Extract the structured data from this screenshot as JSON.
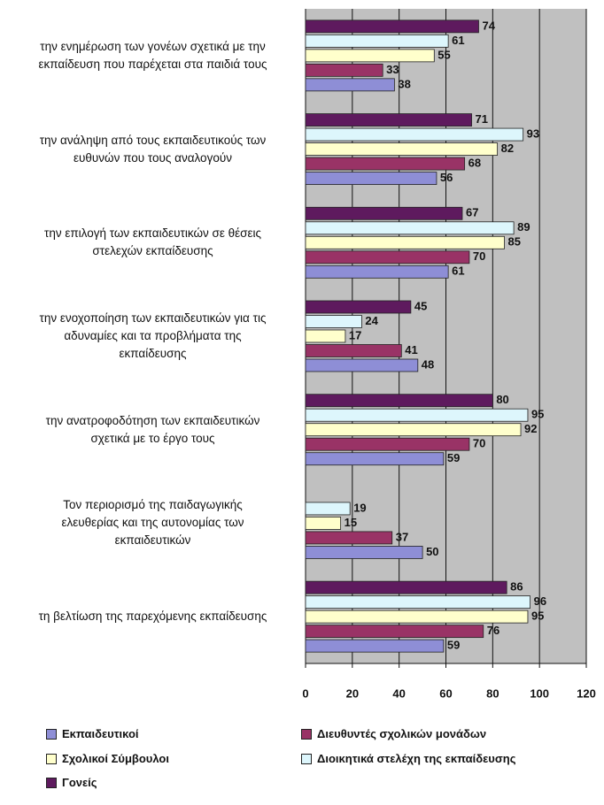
{
  "chart_data": {
    "type": "hbar",
    "categories": [
      "την ενημέρωση των γονέων σχετικά με την\nεκπαίδευση που παρέχεται στα παιδιά τους",
      "την ανάληψη από τους εκπαιδευτικούς των\nευθυνών που τους αναλογούν",
      "την επιλογή των εκπαιδευτικών σε θέσεις\nστελεχών εκπαίδευσης",
      "την ενοχοποίηση των εκπαιδευτικών για τις\nαδυναμίες και τα προβλήματα της\nεκπαίδευσης",
      "την ανατροφοδότηση των εκπαιδευτικών\nσχετικά με το έργο τους",
      "Τον περιορισμό της παιδαγωγικής\nελευθερίας και της αυτονομίας των\nεκπαιδευτικών",
      "τη βελτίωση της παρεχόμενης εκπαίδευσης"
    ],
    "series": [
      {
        "name": "Εκπαιδευτικοί",
        "color": "#8e8ed6",
        "values": [
          38,
          56,
          61,
          48,
          59,
          50,
          59
        ]
      },
      {
        "name": "Διευθυντές σχολικών μονάδων",
        "color": "#993366",
        "values": [
          33,
          68,
          70,
          41,
          70,
          37,
          76
        ]
      },
      {
        "name": "Σχολικοί Σύμβουλοι",
        "color": "#ffffcc",
        "values": [
          55,
          82,
          85,
          17,
          92,
          15,
          95
        ]
      },
      {
        "name": "Διοικητικά στελέχη της εκπαίδευσης",
        "color": "#ddf6fc",
        "values": [
          61,
          93,
          89,
          24,
          95,
          19,
          96
        ]
      },
      {
        "name": "Γονείς",
        "color": "#5e1a5e",
        "values": [
          74,
          71,
          67,
          45,
          80,
          null,
          86
        ]
      }
    ],
    "xlim": [
      0,
      120
    ],
    "xticks": [
      0,
      20,
      40,
      60,
      80,
      100,
      120
    ],
    "grid": true
  }
}
